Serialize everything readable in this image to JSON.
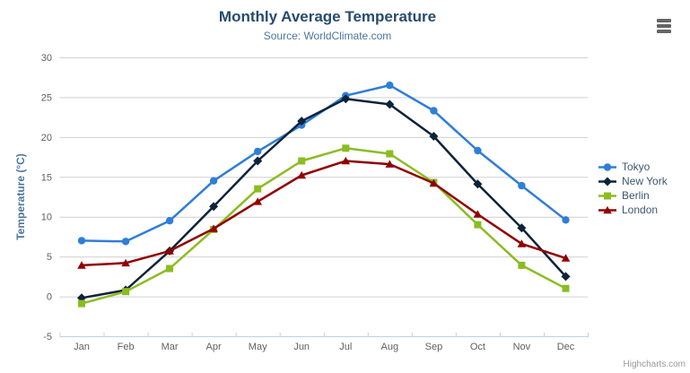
{
  "chart_data": {
    "type": "line",
    "title": "Monthly Average Temperature",
    "subtitle": "Source: WorldClimate.com",
    "categories": [
      "Jan",
      "Feb",
      "Mar",
      "Apr",
      "May",
      "Jun",
      "Jul",
      "Aug",
      "Sep",
      "Oct",
      "Nov",
      "Dec"
    ],
    "xlabel": "",
    "ylabel": "Temperature (°C)",
    "ylim": [
      -5,
      30
    ],
    "yticks": [
      -5,
      0,
      5,
      10,
      15,
      20,
      25,
      30
    ],
    "grid": true,
    "legend_position": "right",
    "series": [
      {
        "name": "Tokyo",
        "color": "#2f7ed8",
        "marker": "circle",
        "values": [
          7.0,
          6.9,
          9.5,
          14.5,
          18.2,
          21.5,
          25.2,
          26.5,
          23.3,
          18.3,
          13.9,
          9.6
        ]
      },
      {
        "name": "New York",
        "color": "#0d233a",
        "marker": "diamond",
        "values": [
          -0.2,
          0.8,
          5.7,
          11.3,
          17.0,
          22.0,
          24.8,
          24.1,
          20.1,
          14.1,
          8.6,
          2.5
        ]
      },
      {
        "name": "Berlin",
        "color": "#8bbc21",
        "marker": "square",
        "values": [
          -0.9,
          0.6,
          3.5,
          8.4,
          13.5,
          17.0,
          18.6,
          17.9,
          14.3,
          9.0,
          3.9,
          1.0
        ]
      },
      {
        "name": "London",
        "color": "#910000",
        "marker": "triangle",
        "values": [
          3.9,
          4.2,
          5.7,
          8.5,
          11.9,
          15.2,
          17.0,
          16.6,
          14.2,
          10.3,
          6.6,
          4.8
        ]
      }
    ],
    "style": {
      "title_color": "#274b6d",
      "subtitle_color": "#4d759e",
      "axis_title_color": "#4d759e",
      "axis_label_color": "#606060",
      "legend_text_color": "#3E576F",
      "gridline_color": "#D0D0D0",
      "axis_line_color": "#C0D0E0"
    }
  },
  "credits": {
    "label": "Highcharts.com"
  },
  "context_menu": {
    "icon": "hamburger-menu"
  }
}
